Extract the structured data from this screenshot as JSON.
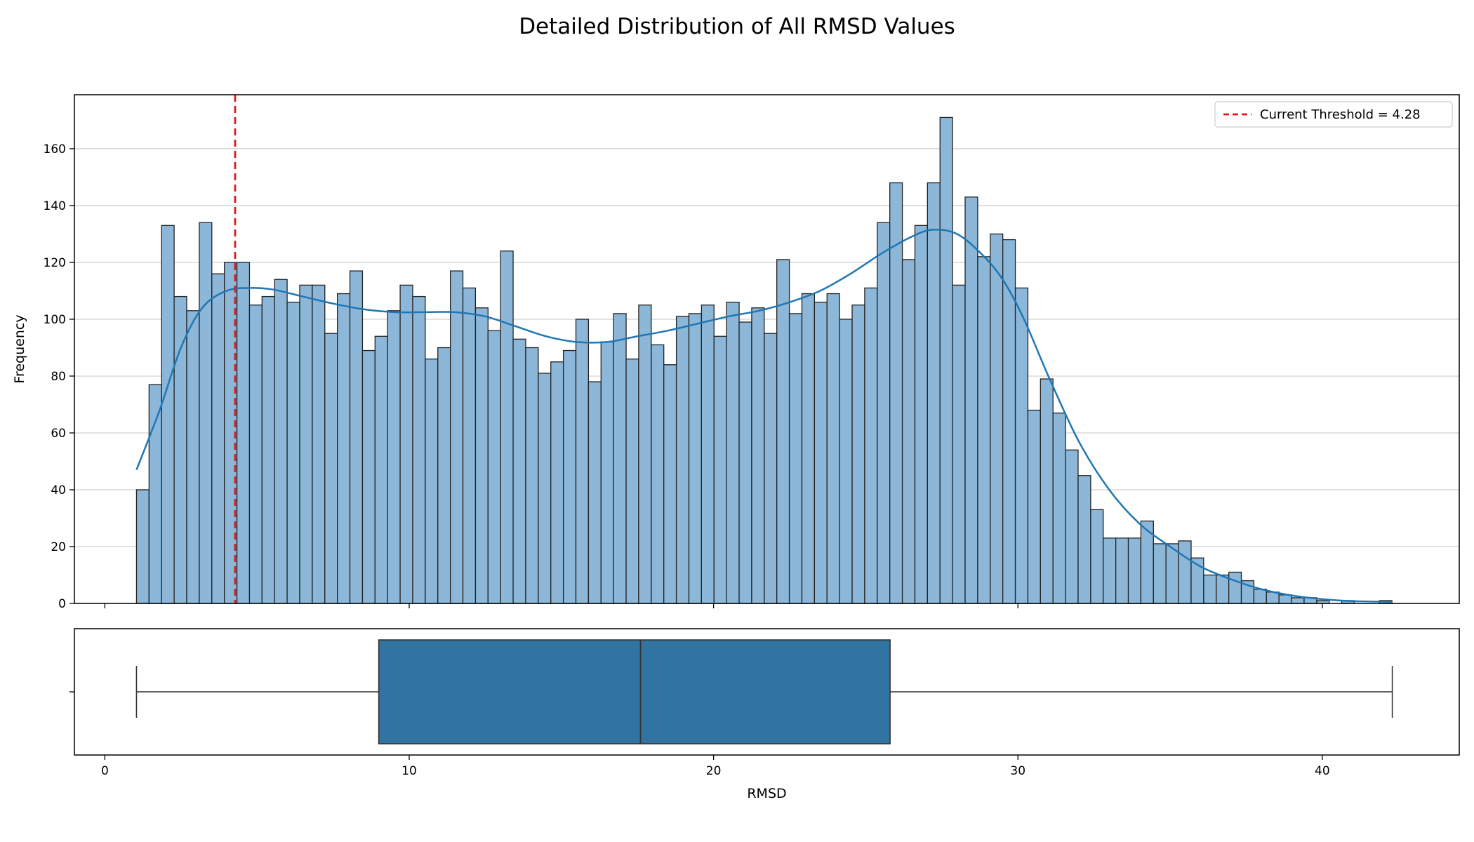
{
  "chart_data": {
    "type": "bar",
    "title": "Detailed Distribution of All RMSD Values",
    "xlabel": "RMSD",
    "ylabel": "Frequency",
    "xlim": [
      -1.0,
      44.5
    ],
    "ylim": [
      0,
      179
    ],
    "x_ticks": [
      0,
      10,
      20,
      30,
      40
    ],
    "y_ticks": [
      0,
      20,
      40,
      60,
      80,
      100,
      120,
      140,
      160
    ],
    "grid": "horizontal",
    "bin_start": 1.04,
    "bin_width": 0.4125,
    "histogram": {
      "counts": [
        40,
        77,
        133,
        108,
        103,
        134,
        116,
        120,
        120,
        105,
        108,
        114,
        106,
        112,
        112,
        95,
        109,
        117,
        89,
        94,
        103,
        112,
        108,
        86,
        90,
        117,
        111,
        104,
        96,
        124,
        93,
        90,
        81,
        85,
        89,
        100,
        78,
        92,
        102,
        86,
        105,
        91,
        84,
        101,
        102,
        105,
        94,
        106,
        99,
        104,
        95,
        121,
        102,
        109,
        106,
        109,
        100,
        105,
        111,
        134,
        148,
        121,
        133,
        148,
        171,
        112,
        143,
        122,
        130,
        128,
        111,
        68,
        79,
        67,
        54,
        45,
        33,
        23,
        23,
        23,
        29,
        21,
        21,
        22,
        16,
        10,
        10,
        11,
        8,
        5,
        4,
        3,
        2,
        2,
        1,
        0,
        1,
        0,
        0,
        1
      ],
      "fill_color": "#8cb7d8",
      "edge_color": "#222222"
    },
    "kde": {
      "color": "#1f77b4",
      "x": [
        1.04,
        1.8,
        2.5,
        3.2,
        4.0,
        4.8,
        5.5,
        6.5,
        7.5,
        8.5,
        9.5,
        10.5,
        11.5,
        12.5,
        13.5,
        14.5,
        15.5,
        16.5,
        17.5,
        18.5,
        19.5,
        20.5,
        21.5,
        22.5,
        23.5,
        24.5,
        25.5,
        26.5,
        27.2,
        28.0,
        28.8,
        29.5,
        30.2,
        31.0,
        32.0,
        33.0,
        34.0,
        35.0,
        36.0,
        37.0,
        38.0,
        39.0,
        40.0,
        41.0,
        42.3
      ],
      "y": [
        47,
        68,
        90,
        104,
        110,
        111,
        110.5,
        108,
        105.5,
        103.5,
        102.5,
        102.5,
        102.5,
        101,
        97.5,
        94,
        92,
        92,
        94,
        96,
        98.5,
        101,
        103,
        106,
        110,
        116,
        123,
        129,
        131.5,
        130,
        123,
        114,
        100,
        80,
        57,
        40,
        28,
        20,
        13,
        8.5,
        5,
        2.8,
        1.5,
        0.8,
        0.6
      ]
    },
    "threshold": {
      "value": 4.28,
      "label": "Current Threshold = 4.28",
      "color": "#e31a1c"
    },
    "legend_position": "top-right",
    "boxplot": {
      "whisker_low": 1.04,
      "q1": 9.0,
      "median": 17.6,
      "q3": 25.8,
      "whisker_high": 42.3,
      "fill_color": "#3274a1",
      "edge_color": "#333333"
    }
  }
}
